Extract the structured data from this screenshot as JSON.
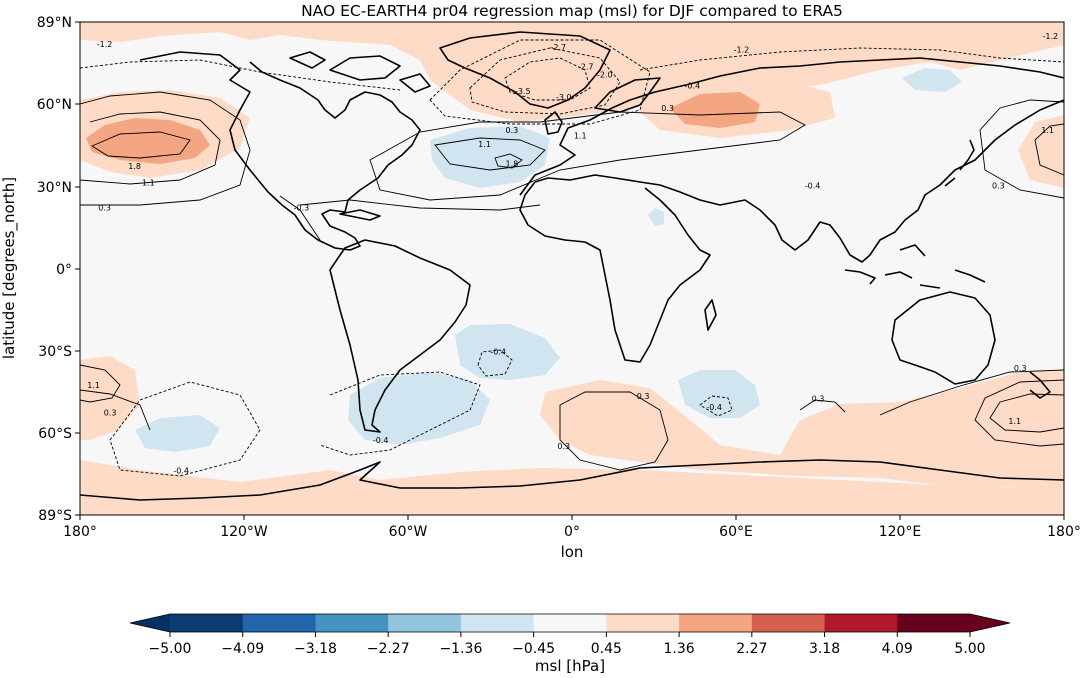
{
  "map": {
    "title": "NAO EC-EARTH4 pr04 regression map (msl) for DJF compared to ERA5",
    "ylabel": "latitude [degrees_north]",
    "xlabel": "lon",
    "x_ticks": [
      "180°",
      "120°W",
      "60°W",
      "0°",
      "60°E",
      "120°E",
      "180°"
    ],
    "y_ticks": [
      "89°N",
      "60°N",
      "30°N",
      "0°",
      "30°S",
      "60°S",
      "89°S"
    ],
    "contour_labels": [
      {
        "text": "-1.2",
        "lon": -171,
        "lat": 81
      },
      {
        "text": "-2.7",
        "lon": -5,
        "lat": 80
      },
      {
        "text": "-2.7",
        "lon": 5,
        "lat": 73
      },
      {
        "text": "-2.0",
        "lon": 12,
        "lat": 70
      },
      {
        "text": "-3.5",
        "lon": -18,
        "lat": 64
      },
      {
        "text": "-3.0",
        "lon": -3,
        "lat": 62
      },
      {
        "text": "-0.4",
        "lon": 44,
        "lat": 66
      },
      {
        "text": "-1.2",
        "lon": 62,
        "lat": 79
      },
      {
        "text": "-1.2",
        "lon": 175,
        "lat": 84
      },
      {
        "text": "0.3",
        "lon": -22,
        "lat": 50
      },
      {
        "text": "1.1",
        "lon": -32,
        "lat": 45
      },
      {
        "text": "1.8",
        "lon": -22,
        "lat": 38
      },
      {
        "text": "1.1",
        "lon": 3,
        "lat": 48
      },
      {
        "text": "0.3",
        "lon": 35,
        "lat": 58
      },
      {
        "text": "1.8",
        "lon": -160,
        "lat": 37
      },
      {
        "text": "1.1",
        "lon": -155,
        "lat": 31
      },
      {
        "text": "0.3",
        "lon": -171,
        "lat": 22
      },
      {
        "text": "-0.3",
        "lon": -99,
        "lat": 22
      },
      {
        "text": "-0.4",
        "lon": 88,
        "lat": 30
      },
      {
        "text": "1.1",
        "lon": 174,
        "lat": 50
      },
      {
        "text": "0.3",
        "lon": 156,
        "lat": 30
      },
      {
        "text": "-0.4",
        "lon": -27,
        "lat": -30
      },
      {
        "text": "1.1",
        "lon": -175,
        "lat": -42
      },
      {
        "text": "0.3",
        "lon": -169,
        "lat": -52
      },
      {
        "text": "-0.4",
        "lon": -70,
        "lat": -62
      },
      {
        "text": "-0.4",
        "lon": -143,
        "lat": -73
      },
      {
        "text": "0.3",
        "lon": 26,
        "lat": -46
      },
      {
        "text": "0.3",
        "lon": -3,
        "lat": -64
      },
      {
        "text": "-0.4",
        "lon": 52,
        "lat": -50
      },
      {
        "text": "0.3",
        "lon": 90,
        "lat": -47
      },
      {
        "text": "0.3",
        "lon": 164,
        "lat": -36
      },
      {
        "text": "1.1",
        "lon": 162,
        "lat": -55
      }
    ]
  },
  "colorbar": {
    "label": "msl [hPa]",
    "tick_labels": [
      "−5.00",
      "−4.09",
      "−3.18",
      "−2.27",
      "−1.36",
      "−0.45",
      "0.45",
      "1.36",
      "2.27",
      "3.18",
      "4.09",
      "5.00"
    ],
    "colors": [
      "#0b3b73",
      "#2166ac",
      "#4393c3",
      "#92c5de",
      "#d1e5f0",
      "#f7f7f7",
      "#fddbc7",
      "#f4a582",
      "#d6604d",
      "#b2182b",
      "#67001f"
    ],
    "extend_colors": {
      "low": "#053061",
      "high": "#67001f"
    }
  },
  "fill_colors": {
    "ocean_neutral": "#f7f7f7",
    "pos1": "#fddbc7",
    "pos2": "#f4a582",
    "neg1": "#d1e5f0"
  }
}
